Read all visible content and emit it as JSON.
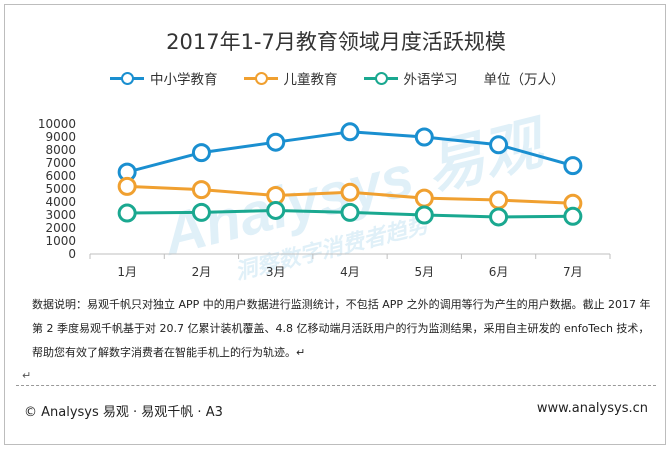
{
  "chart_data": {
    "type": "line",
    "title": "2017年1-7月教育领域月度活跃规模",
    "unit_label": "单位（万人）",
    "categories": [
      "1月",
      "2月",
      "3月",
      "4月",
      "5月",
      "6月",
      "7月"
    ],
    "yticks": [
      "0",
      "1000",
      "2000",
      "3000",
      "4000",
      "5000",
      "6000",
      "7000",
      "8000",
      "9000",
      "10000"
    ],
    "ylim": [
      0,
      10000
    ],
    "xlabel": "",
    "ylabel": "",
    "grid": false,
    "legend_position": "top",
    "series": [
      {
        "name": "中小学教育",
        "color": "#1a8fd0",
        "values": [
          6300,
          7800,
          8600,
          9400,
          9000,
          8400,
          6800
        ]
      },
      {
        "name": "儿童教育",
        "color": "#f0a030",
        "values": [
          5200,
          4950,
          4500,
          4750,
          4300,
          4150,
          3900
        ]
      },
      {
        "name": "外语学习",
        "color": "#1aa890",
        "values": [
          3150,
          3200,
          3350,
          3200,
          3000,
          2850,
          2900
        ]
      }
    ]
  },
  "note": {
    "line1": "数据说明：易观千帆只对独立 APP 中的用户数据进行监测统计，不包括 APP 之外的调用等行为产生的用户数据。截止 2017 年",
    "line2": "第 2 季度易观千帆基于对 20.7 亿累计装机覆盖、4.8 亿移动端月活跃用户的行为监测结果，采用自主研发的 enfoTech 技术，",
    "line3": "帮助您有效了解数字消费者在智能手机上的行为轨迹。↵"
  },
  "return_mark": "↵",
  "footer": {
    "left": "© Analysys 易观 · 易观千帆 · A3",
    "right": "www.analysys.cn"
  }
}
